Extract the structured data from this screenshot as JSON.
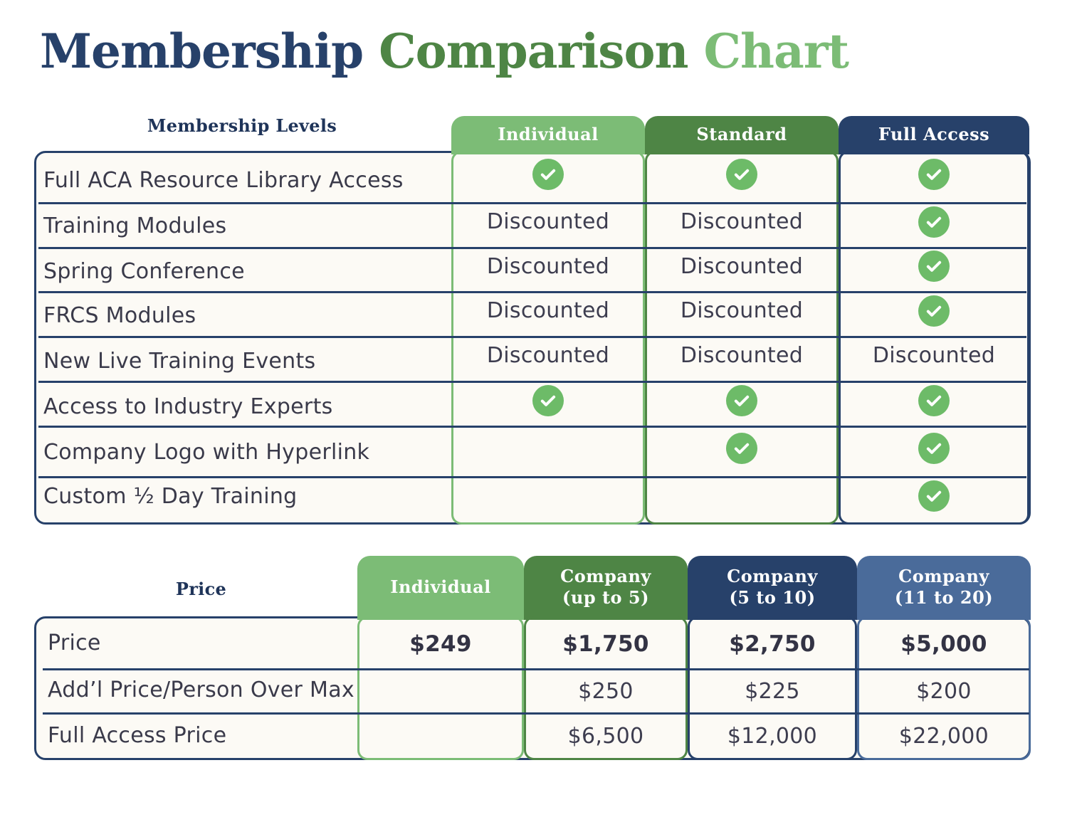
{
  "title": {
    "part1": "Membership",
    "part2": "Comparison",
    "part3": "Chart"
  },
  "colors": {
    "navy": "#27416a",
    "green_dark": "#4e8545",
    "green_light": "#7cbc76",
    "blue_mid": "#4a6b9a",
    "check": "#6dbb68"
  },
  "membership": {
    "section_label": "Membership Levels",
    "columns": [
      "Individual",
      "Standard",
      "Full Access"
    ],
    "rows": [
      {
        "label": "Full ACA Resource Library Access",
        "cells": [
          "check-icon",
          "check-icon",
          "check-icon"
        ]
      },
      {
        "label": "Training Modules",
        "cells": [
          "Discounted",
          "Discounted",
          "check-icon"
        ]
      },
      {
        "label": "Spring Conference",
        "cells": [
          "Discounted",
          "Discounted",
          "check-icon"
        ]
      },
      {
        "label": "FRCS Modules",
        "cells": [
          "Discounted",
          "Discounted",
          "check-icon"
        ]
      },
      {
        "label": "New Live Training Events",
        "cells": [
          "Discounted",
          "Discounted",
          "Discounted"
        ]
      },
      {
        "label": "Access to Industry Experts",
        "cells": [
          "check-icon",
          "check-icon",
          "check-icon"
        ]
      },
      {
        "label": "Company Logo with Hyperlink",
        "cells": [
          "",
          "check-icon",
          "check-icon"
        ]
      },
      {
        "label": "Custom ½ Day Training",
        "cells": [
          "",
          "",
          "check-icon"
        ]
      }
    ]
  },
  "pricing": {
    "section_label": "Price",
    "columns": [
      {
        "line1": "Individual",
        "line2": ""
      },
      {
        "line1": "Company",
        "line2": "(up to 5)"
      },
      {
        "line1": "Company",
        "line2": "(5 to 10)"
      },
      {
        "line1": "Company",
        "line2": "(11 to 20)"
      }
    ],
    "rows": [
      {
        "label": "Price",
        "cells": [
          "$249",
          "$1,750",
          "$2,750",
          "$5,000"
        ],
        "bold": true
      },
      {
        "label": "Add’l Price/Person Over Max",
        "cells": [
          "",
          "$250",
          "$225",
          "$200"
        ],
        "bold": false
      },
      {
        "label": "Full Access Price",
        "cells": [
          "",
          "$6,500",
          "$12,000",
          "$22,000"
        ],
        "bold": false
      }
    ]
  }
}
